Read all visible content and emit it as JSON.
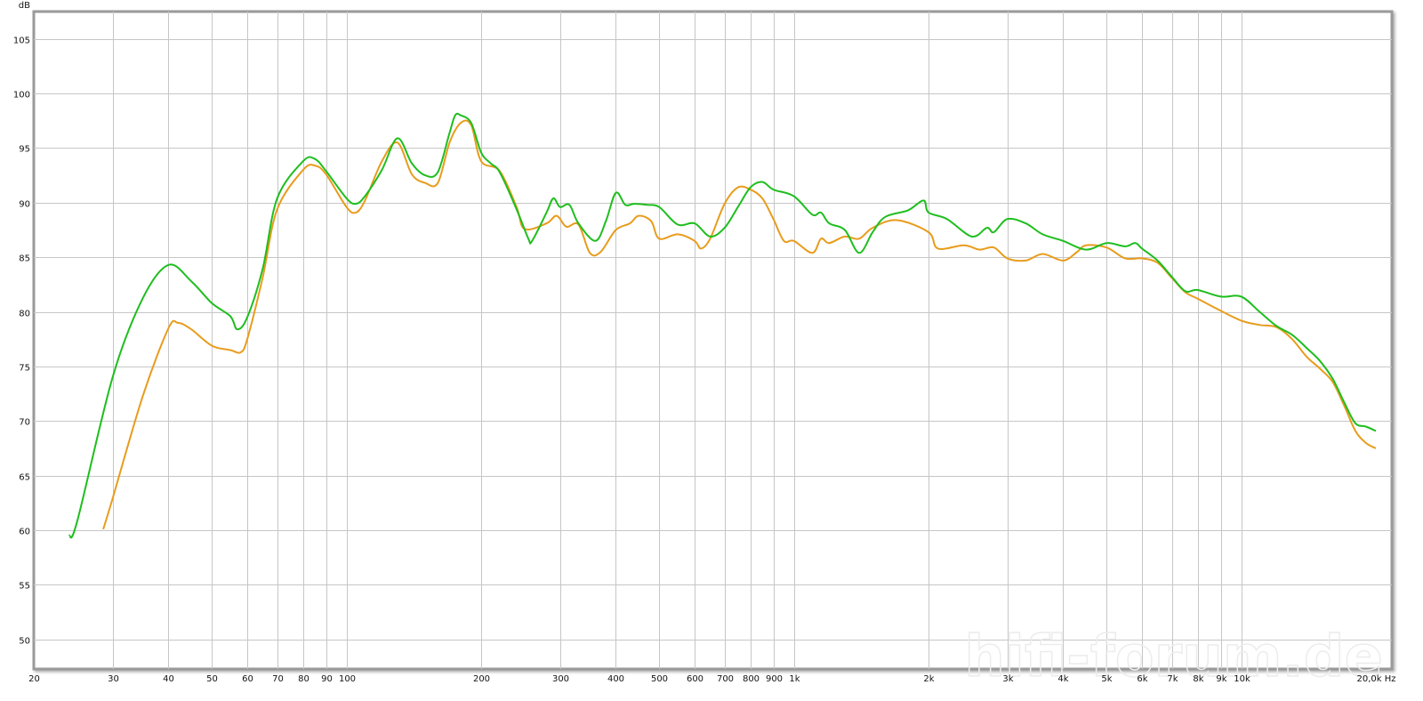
{
  "chart_data": {
    "type": "line",
    "title": "",
    "xlabel": "",
    "ylabel": "",
    "x_unit": "Hz",
    "y_unit": "dB",
    "x_scale": "log",
    "xlim": [
      20,
      20000
    ],
    "ylim": [
      47.3,
      107.5
    ],
    "grid": true,
    "legend": "none",
    "x_ticks": [
      {
        "value": 20,
        "label": "20"
      },
      {
        "value": 30,
        "label": "30"
      },
      {
        "value": 40,
        "label": "40"
      },
      {
        "value": 50,
        "label": "50"
      },
      {
        "value": 60,
        "label": "60"
      },
      {
        "value": 70,
        "label": "70"
      },
      {
        "value": 80,
        "label": "80"
      },
      {
        "value": 90,
        "label": "90"
      },
      {
        "value": 100,
        "label": "100"
      },
      {
        "value": 200,
        "label": "200"
      },
      {
        "value": 300,
        "label": "300"
      },
      {
        "value": 400,
        "label": "400"
      },
      {
        "value": 500,
        "label": "500"
      },
      {
        "value": 600,
        "label": "600"
      },
      {
        "value": 700,
        "label": "700"
      },
      {
        "value": 800,
        "label": "800"
      },
      {
        "value": 900,
        "label": "900"
      },
      {
        "value": 1000,
        "label": "1k"
      },
      {
        "value": 2000,
        "label": "2k"
      },
      {
        "value": 3000,
        "label": "3k"
      },
      {
        "value": 4000,
        "label": "4k"
      },
      {
        "value": 5000,
        "label": "5k"
      },
      {
        "value": 6000,
        "label": "6k"
      },
      {
        "value": 7000,
        "label": "7k"
      },
      {
        "value": 8000,
        "label": "8k"
      },
      {
        "value": 9000,
        "label": "9k"
      },
      {
        "value": 10000,
        "label": "10k"
      },
      {
        "value": 20000,
        "label": "20,0k Hz"
      }
    ],
    "y_ticks": [
      50,
      55,
      60,
      65,
      70,
      75,
      80,
      85,
      90,
      95,
      100,
      105
    ],
    "series": [
      {
        "color": "#e89c1c",
        "x": [
          28.6,
          30,
          35,
          40,
          42,
          45,
          50,
          55,
          58,
          60,
          65,
          70,
          80,
          85,
          90,
          100,
          105,
          110,
          120,
          130,
          140,
          150,
          160,
          170,
          180,
          190,
          200,
          220,
          240,
          250,
          280,
          295,
          310,
          330,
          350,
          370,
          400,
          430,
          450,
          480,
          500,
          550,
          600,
          620,
          650,
          700,
          750,
          800,
          850,
          900,
          950,
          1000,
          1100,
          1150,
          1200,
          1300,
          1400,
          1500,
          1700,
          2000,
          2100,
          2400,
          2600,
          2800,
          3000,
          3300,
          3600,
          4000,
          4300,
          4500,
          5000,
          5500,
          6000,
          6500,
          7000,
          7500,
          8000,
          9000,
          10000,
          11000,
          12000,
          13000,
          14000,
          15000,
          16000,
          17000,
          18000,
          19000,
          20000
        ],
        "y": [
          60.1,
          62.9,
          72.2,
          78.5,
          79.0,
          78.4,
          76.9,
          76.5,
          76.3,
          77.5,
          83.2,
          89.4,
          93.0,
          93.4,
          92.6,
          89.6,
          89.1,
          90.2,
          93.8,
          95.5,
          92.6,
          91.8,
          91.8,
          95.5,
          97.3,
          97.1,
          93.8,
          92.9,
          89.6,
          87.6,
          88.1,
          88.8,
          87.8,
          88.0,
          85.4,
          85.5,
          87.5,
          88.1,
          88.8,
          88.3,
          86.7,
          87.1,
          86.5,
          85.8,
          86.7,
          89.9,
          91.4,
          91.2,
          90.4,
          88.5,
          86.5,
          86.5,
          85.4,
          86.7,
          86.3,
          86.9,
          86.7,
          87.7,
          88.4,
          87.3,
          85.8,
          86.1,
          85.7,
          85.9,
          84.9,
          84.7,
          85.3,
          84.7,
          85.5,
          86.1,
          85.9,
          84.9,
          84.9,
          84.5,
          83.1,
          81.8,
          81.2,
          80.1,
          79.2,
          78.8,
          78.6,
          77.5,
          75.9,
          74.8,
          73.6,
          71.4,
          69.1,
          68.0,
          67.5
        ]
      },
      {
        "color": "#1ebe1e",
        "x": [
          24,
          25,
          30,
          35,
          40,
          45,
          50,
          55,
          57,
          60,
          65,
          70,
          80,
          85,
          90,
          100,
          105,
          110,
          120,
          130,
          140,
          150,
          160,
          170,
          175,
          180,
          190,
          200,
          210,
          220,
          240,
          255,
          260,
          280,
          290,
          300,
          315,
          330,
          360,
          380,
          400,
          420,
          440,
          470,
          500,
          550,
          600,
          650,
          700,
          750,
          800,
          850,
          900,
          1000,
          1100,
          1150,
          1200,
          1300,
          1400,
          1500,
          1600,
          1800,
          1950,
          2000,
          2200,
          2500,
          2700,
          2800,
          3000,
          3300,
          3600,
          4000,
          4500,
          5000,
          5500,
          5800,
          6000,
          6500,
          7000,
          7500,
          8000,
          9000,
          10000,
          11000,
          12000,
          13000,
          14000,
          15000,
          16000,
          17000,
          18000,
          19000,
          20000
        ],
        "y": [
          59.5,
          60.8,
          74.0,
          81.2,
          84.3,
          82.8,
          80.8,
          79.6,
          78.4,
          79.5,
          84.0,
          90.4,
          93.8,
          94.0,
          92.9,
          90.4,
          89.9,
          90.6,
          93.0,
          95.9,
          93.6,
          92.5,
          92.8,
          96.4,
          98.0,
          98.0,
          97.3,
          94.6,
          93.6,
          92.8,
          89.4,
          86.7,
          86.5,
          89.1,
          90.4,
          89.6,
          89.8,
          88.1,
          86.5,
          88.3,
          90.9,
          89.8,
          89.9,
          89.8,
          89.6,
          88.0,
          88.1,
          86.9,
          87.7,
          89.6,
          91.4,
          91.9,
          91.2,
          90.6,
          88.9,
          89.1,
          88.1,
          87.5,
          85.4,
          87.3,
          88.7,
          89.3,
          90.2,
          89.1,
          88.5,
          86.9,
          87.7,
          87.3,
          88.5,
          88.1,
          87.1,
          86.5,
          85.7,
          86.3,
          86.0,
          86.3,
          85.8,
          84.7,
          83.2,
          81.9,
          82.0,
          81.4,
          81.4,
          80.0,
          78.7,
          77.9,
          76.7,
          75.5,
          73.9,
          71.7,
          69.8,
          69.5,
          69.1
        ]
      }
    ]
  },
  "watermark": "hifi-forum.de"
}
